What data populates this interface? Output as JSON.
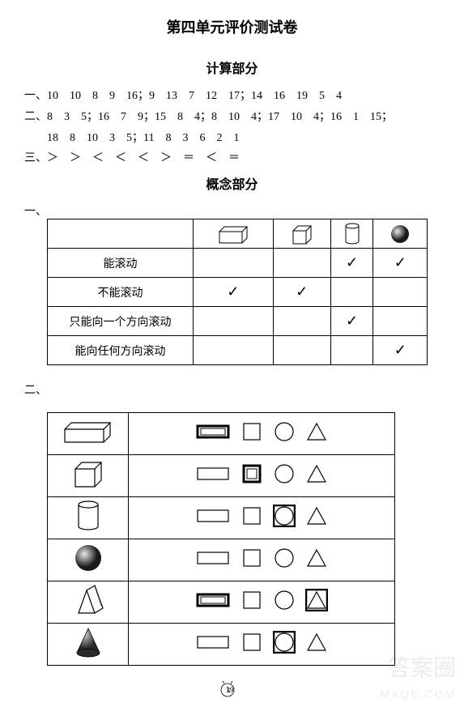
{
  "title": "第四单元评价测试卷",
  "calc_section": "计算部分",
  "concept_section": "概念部分",
  "q1_label": "一、",
  "q2_label": "二、",
  "q3_label": "三、",
  "calc": {
    "row1": "10　10　8　9　16；9　13　7　12　17；14　16　19　5　4",
    "row2": "8　3　5；16　7　9；15　8　4；8　10　4；17　10　4；16　1　15；",
    "row2b": "18　8　10　3　5；11　8　3　6　2　1",
    "row3": "＞　＞　＜　＜　＜　＞　＝　＜　＝"
  },
  "concept_table": {
    "headers": [
      "",
      "cuboid",
      "cube",
      "cylinder",
      "sphere"
    ],
    "rows": [
      {
        "label": "能滚动",
        "cells": [
          "",
          "",
          "✓",
          "✓"
        ]
      },
      {
        "label": "不能滚动",
        "cells": [
          "✓",
          "✓",
          "",
          ""
        ]
      },
      {
        "label": "只能向一个方向滚动",
        "cells": [
          "",
          "",
          "✓",
          ""
        ]
      },
      {
        "label": "能向任何方向滚动",
        "cells": [
          "",
          "",
          "",
          "✓"
        ]
      }
    ]
  },
  "match_table": {
    "rows": [
      {
        "solid": "cuboid",
        "selected": 0
      },
      {
        "solid": "cube",
        "selected": 1
      },
      {
        "solid": "cylinder",
        "selected": 2
      },
      {
        "solid": "sphere",
        "selected": -1
      },
      {
        "solid": "prism",
        "selected_multi": [
          0,
          3
        ]
      },
      {
        "solid": "cone",
        "selected": 2
      }
    ],
    "options": [
      "rect",
      "square",
      "circle",
      "triangle"
    ]
  },
  "colors": {
    "stroke": "#000000",
    "bg": "#ffffff",
    "sphere_dark": "#2a2a2a",
    "sphere_light": "#e0e0e0"
  },
  "page_num": "29",
  "watermark1": "答案圈",
  "watermark2": "MXQE.COM"
}
